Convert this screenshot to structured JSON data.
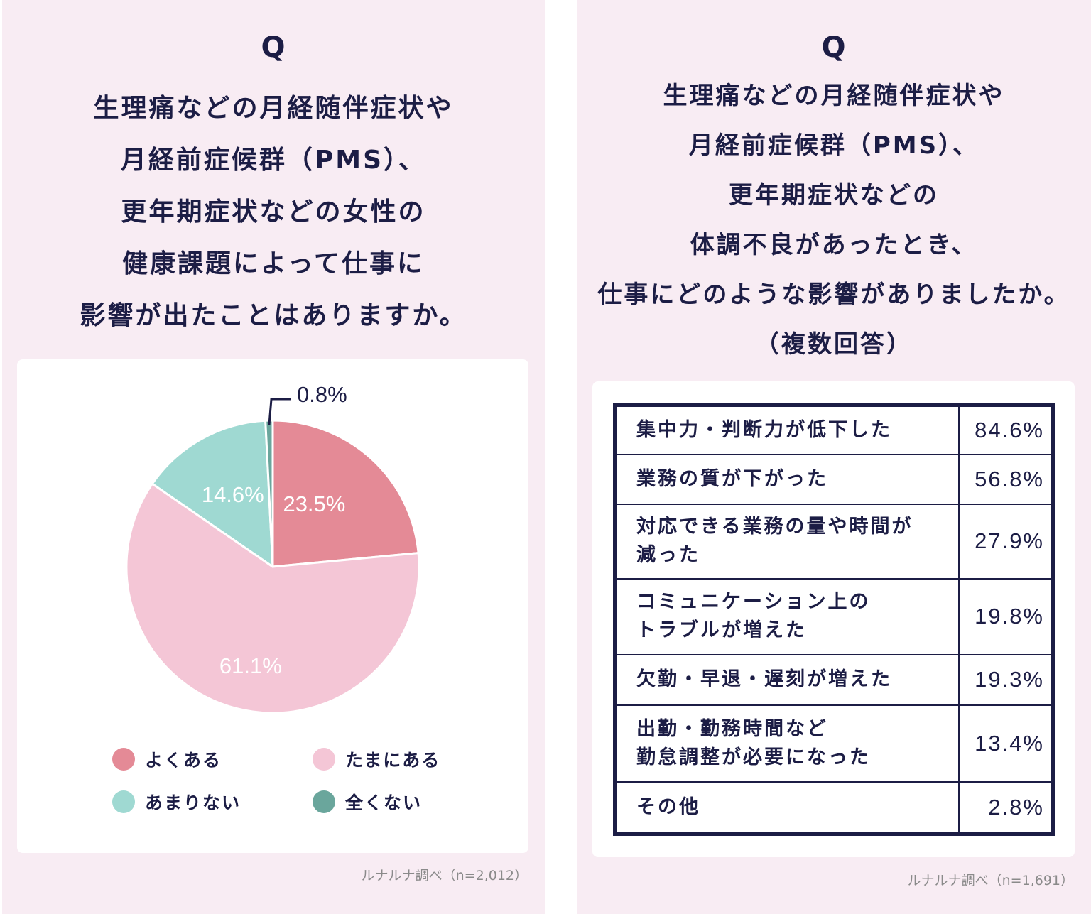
{
  "left_panel": {
    "q_mark": "Q",
    "question_lines": [
      "生理痛などの月経随伴症状や",
      "月経前症候群（PMS）、",
      "更年期症状などの女性の",
      "健康課題によって仕事に",
      "影響が出たことはありますか。"
    ],
    "source": "ルナルナ調べ（n=2,012）"
  },
  "right_panel": {
    "q_mark": "Q",
    "question_lines": [
      "生理痛などの月経随伴症状や",
      "月経前症候群（PMS）、",
      "更年期症状などの",
      "体調不良があったとき、",
      "仕事にどのような影響がありましたか。",
      "（複数回答）"
    ],
    "source": "ルナルナ調べ（n=1,691）"
  },
  "colors": {
    "panel_bg": "#f8ecf3",
    "text_navy": "#1c1d45",
    "often": "#e48a96",
    "sometimes": "#f4c6d6",
    "rarely": "#9fd9d2",
    "never": "#6aa69c"
  },
  "chart_data": [
    {
      "type": "pie",
      "title": "生理痛などの月経随伴症状や月経前症候群（PMS）、更年期症状などの女性の健康課題によって仕事に影響が出たことはありますか。",
      "categories": [
        "よくある",
        "たまにある",
        "あまりない",
        "全くない"
      ],
      "values": [
        23.5,
        61.1,
        14.6,
        0.8
      ],
      "labels": [
        "23.5%",
        "61.1%",
        "14.6%",
        "0.8%"
      ],
      "colors": [
        "#e48a96",
        "#f4c6d6",
        "#9fd9d2",
        "#6aa69c"
      ],
      "start_angle": "12 o'clock, clockwise",
      "legend_position": "bottom, 2x2 grid",
      "n": "2,012"
    },
    {
      "type": "table",
      "title": "生理痛などの月経随伴症状や月経前症候群（PMS）、更年期症状などの体調不良があったとき、仕事にどのような影響がありましたか。（複数回答）",
      "rows": [
        {
          "lines": [
            "集中力・判断力が低下した"
          ],
          "value": "84.6%"
        },
        {
          "lines": [
            "業務の質が下がった"
          ],
          "value": "56.8%"
        },
        {
          "lines": [
            "対応できる業務の量や時間が",
            "減った"
          ],
          "value": "27.9%"
        },
        {
          "lines": [
            "コミュニケーション上の",
            "トラブルが増えた"
          ],
          "value": "19.8%"
        },
        {
          "lines": [
            "欠勤・早退・遅刻が増えた"
          ],
          "value": "19.3%"
        },
        {
          "lines": [
            "出勤・勤務時間など",
            "勤怠調整が必要になった"
          ],
          "value": "13.4%"
        },
        {
          "lines": [
            "その他"
          ],
          "value": "2.8%"
        }
      ],
      "n": "1,691"
    }
  ]
}
